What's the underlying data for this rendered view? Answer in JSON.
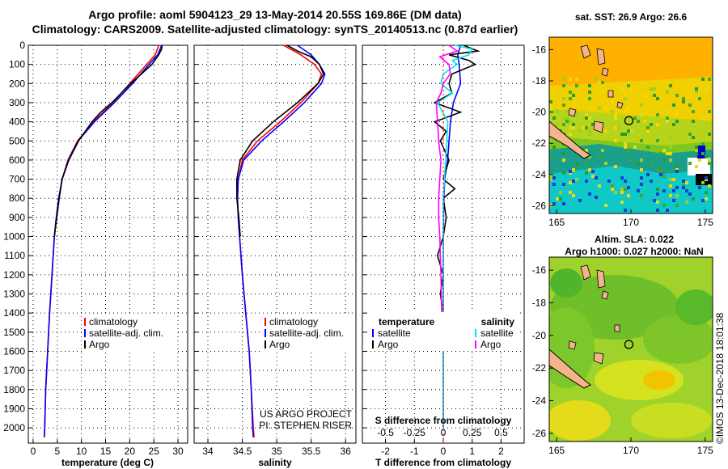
{
  "header": {
    "line1": "Argo profile: aoml 5904123_29 13-May-2014 20.55S 169.86E (DM data)",
    "line2": "Climatology: CARS2009. Satellite-adjusted climatology: synTS_20140513.nc (0.87d earlier)"
  },
  "panels": {
    "temperature": {
      "xlabel": "temperature (deg C)"
    },
    "salinity": {
      "xlabel": "salinity",
      "credit1": "US ARGO PROJECT",
      "credit2": "PI: STEPHEN RISER"
    },
    "difference": {
      "xlabel": "T difference from climatology",
      "top_label": "S difference from climatology",
      "legend_left_title": "temperature",
      "legend_right_title": "salinity"
    },
    "sst_map": {
      "title": "sat. SST: 26.9 Argo: 26.6"
    },
    "sla_map": {
      "title1": "Altim. SLA: 0.022",
      "title2": "Argo h1000: 0.027 h2000: NaN"
    }
  },
  "legend": {
    "climatology": "climatology",
    "satellite": "satellite-adj. clim.",
    "argo": "Argo",
    "satellite_short": "satellite"
  },
  "timestamp": "©IMOS 13-Dec-2018 18:01:38",
  "colors": {
    "climatology": "#ff0000",
    "satellite": "#0000ff",
    "argo": "#000000",
    "sal_satellite": "#00e5ee",
    "sal_argo": "#ff00ff"
  },
  "chart_data": [
    {
      "type": "line",
      "name": "temperature profile",
      "xlabel": "temperature (deg C)",
      "ylabel": "",
      "xlim": [
        -1,
        32
      ],
      "ylim": [
        2080,
        0
      ],
      "y_reversed": true,
      "x_ticks": [
        0,
        5,
        10,
        15,
        20,
        25,
        30
      ],
      "y_ticks": [
        0,
        100,
        200,
        300,
        400,
        500,
        600,
        700,
        800,
        900,
        1000,
        1100,
        1200,
        1300,
        1400,
        1500,
        1600,
        1700,
        1800,
        1900,
        2000
      ],
      "grid": true,
      "legend_position": "lower-center",
      "series": [
        {
          "name": "climatology",
          "depth": [
            0,
            50,
            100,
            200,
            300,
            400,
            500,
            600,
            700,
            800,
            900,
            1000,
            1200,
            1400,
            1600,
            1800,
            1900,
            2000,
            2050
          ],
          "values": [
            26.0,
            25.3,
            23.5,
            20.0,
            16.5,
            12.5,
            9.2,
            7.2,
            6.0,
            5.3,
            4.8,
            4.4,
            3.9,
            3.4,
            3.0,
            2.6,
            2.5,
            2.4,
            2.3
          ]
        },
        {
          "name": "satellite-adj. clim.",
          "depth": [
            0,
            50,
            100,
            200,
            300,
            400,
            500,
            600,
            700,
            800,
            900,
            1000,
            1200,
            1400,
            1600,
            1800,
            1900,
            2000,
            2050
          ],
          "values": [
            26.6,
            25.8,
            24.0,
            20.6,
            16.8,
            12.7,
            9.3,
            7.3,
            6.0,
            5.3,
            4.8,
            4.4,
            3.9,
            3.4,
            3.0,
            2.6,
            2.5,
            2.4,
            2.3
          ]
        },
        {
          "name": "Argo",
          "depth": [
            0,
            20,
            50,
            100,
            150,
            200,
            300,
            350,
            400,
            500,
            600,
            700,
            800,
            900,
            1000
          ],
          "values": [
            26.7,
            26.6,
            26.0,
            24.6,
            22.4,
            20.2,
            16.3,
            14.0,
            12.2,
            9.4,
            7.4,
            6.0,
            5.4,
            4.9,
            4.4
          ]
        }
      ]
    },
    {
      "type": "line",
      "name": "salinity profile",
      "xlabel": "salinity",
      "ylabel": "",
      "xlim": [
        33.8,
        36.15
      ],
      "ylim": [
        2080,
        0
      ],
      "y_reversed": true,
      "x_ticks": [
        34,
        34.5,
        35,
        35.5,
        36
      ],
      "grid": true,
      "legend_position": "lower-center",
      "series": [
        {
          "name": "climatology",
          "depth": [
            0,
            50,
            100,
            150,
            200,
            300,
            400,
            500,
            600,
            700,
            800,
            900,
            1000,
            1200,
            1400,
            1600,
            1800,
            2000,
            2050
          ],
          "values": [
            35.1,
            35.35,
            35.55,
            35.65,
            35.6,
            35.35,
            35.05,
            34.72,
            34.5,
            34.44,
            34.43,
            34.44,
            34.46,
            34.5,
            34.55,
            34.6,
            34.63,
            34.66,
            34.67
          ]
        },
        {
          "name": "satellite-adj. clim.",
          "depth": [
            0,
            50,
            100,
            150,
            200,
            300,
            400,
            500,
            600,
            700,
            800,
            900,
            1000,
            1200,
            1400,
            1600,
            1800,
            2000,
            2050
          ],
          "values": [
            35.3,
            35.5,
            35.62,
            35.7,
            35.65,
            35.4,
            35.1,
            34.78,
            34.52,
            34.44,
            34.43,
            34.44,
            34.46,
            34.5,
            34.55,
            34.6,
            34.63,
            34.65,
            34.66
          ]
        },
        {
          "name": "Argo",
          "depth": [
            0,
            30,
            60,
            100,
            150,
            200,
            300,
            400,
            500,
            600,
            700,
            800,
            900,
            1000
          ],
          "values": [
            35.15,
            35.3,
            35.5,
            35.62,
            35.68,
            35.6,
            35.3,
            34.95,
            34.65,
            34.47,
            34.42,
            34.42,
            34.45,
            34.47
          ]
        }
      ]
    },
    {
      "type": "line",
      "name": "difference from climatology",
      "xlabel": "T difference from climatology",
      "xlim": [
        -2.8,
        2.8
      ],
      "ylim": [
        2080,
        0
      ],
      "y_reversed": true,
      "x_ticks": [
        -2,
        -1,
        0,
        1,
        2
      ],
      "secondary_xlabel": "S difference from climatology",
      "secondary_x_ticks": [
        -0.5,
        -0.25,
        0,
        0.25,
        0.5
      ],
      "grid": true,
      "legend_position": "lower-center",
      "series": [
        {
          "name": "temperature satellite",
          "axis": "T",
          "depth": [
            0,
            50,
            100,
            200,
            300,
            400,
            500,
            600,
            700,
            800,
            1000,
            1200,
            1500,
            1800,
            2000
          ],
          "values": [
            0.6,
            0.5,
            0.55,
            0.6,
            0.35,
            0.25,
            0.2,
            0.15,
            0.05,
            0.02,
            0.0,
            0.0,
            0.0,
            0.0,
            0.0
          ]
        },
        {
          "name": "temperature Argo",
          "axis": "T",
          "depth": [
            0,
            30,
            50,
            80,
            100,
            150,
            200,
            250,
            300,
            350,
            400,
            450,
            500,
            600,
            700,
            750,
            800,
            900,
            1000,
            1100,
            1200,
            1300,
            1400
          ],
          "values": [
            0.7,
            1.2,
            0.2,
            0.9,
            1.1,
            0.3,
            0.2,
            0.3,
            -0.3,
            0.6,
            -0.3,
            0.1,
            -0.1,
            0.2,
            0.0,
            0.4,
            0.0,
            0.1,
            0.0,
            -0.2,
            0.0,
            -0.1,
            0.0
          ]
        },
        {
          "name": "salinity satellite",
          "axis": "S",
          "depth": [
            0,
            20,
            50,
            80,
            100,
            150,
            200,
            250,
            300,
            400,
            500,
            600,
            800,
            1000,
            1200,
            1500,
            1800,
            2000
          ],
          "values": [
            0.1,
            0.25,
            0.22,
            0.08,
            0.12,
            0.0,
            -0.02,
            0.08,
            -0.05,
            0.04,
            0.03,
            0.02,
            0.0,
            0.0,
            0.0,
            0.0,
            0.0,
            0.0
          ]
        },
        {
          "name": "salinity Argo",
          "axis": "S",
          "depth": [
            0,
            30,
            60,
            100,
            150,
            200,
            250,
            300,
            400,
            500,
            600,
            700,
            800,
            900,
            1000,
            1200,
            1500
          ],
          "values": [
            0.05,
            0.12,
            -0.03,
            0.05,
            0.06,
            0.0,
            -0.02,
            -0.06,
            -0.05,
            -0.04,
            -0.02,
            -0.03,
            -0.04,
            -0.04,
            -0.03,
            -0.02,
            -0.01
          ]
        }
      ]
    },
    {
      "type": "heatmap",
      "name": "sat. SST map",
      "title": "sat. SST: 26.9 Argo: 26.6",
      "xlim": [
        164.5,
        175.5
      ],
      "ylim": [
        -26.5,
        -15.2
      ],
      "x_ticks": [
        165,
        170,
        175
      ],
      "y_ticks": [
        -16,
        -18,
        -20,
        -22,
        -24,
        -26
      ],
      "float_position": [
        169.86,
        -20.55
      ]
    },
    {
      "type": "heatmap",
      "name": "altimeter SLA map",
      "title": "Altim. SLA: 0.022 / Argo h1000: 0.027 h2000: NaN",
      "xlim": [
        164.5,
        175.5
      ],
      "ylim": [
        -26.5,
        -15.2
      ],
      "x_ticks": [
        165,
        170,
        175
      ],
      "y_ticks": [
        -16,
        -18,
        -20,
        -22,
        -24,
        -26
      ],
      "float_position": [
        169.86,
        -20.55
      ]
    }
  ]
}
